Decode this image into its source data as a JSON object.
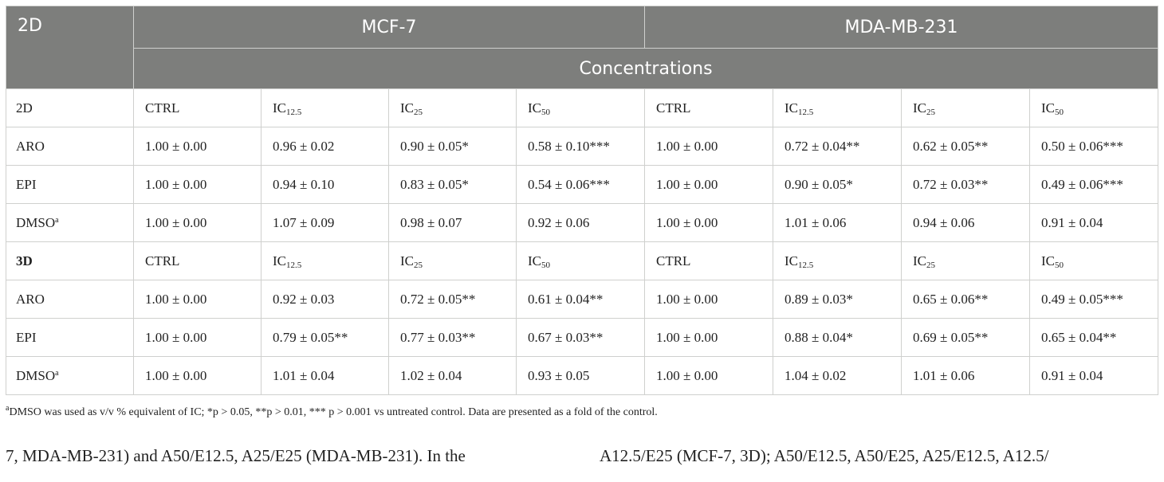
{
  "table": {
    "corner_label": "2D",
    "groups": [
      "MCF-7",
      "MDA-MB-231"
    ],
    "concentrations_label": "Concentrations",
    "sections": [
      {
        "label": "2D",
        "bold": false,
        "cols": [
          [
            "CTRL",
            ""
          ],
          [
            "IC",
            "12.5"
          ],
          [
            "IC",
            "25"
          ],
          [
            "IC",
            "50"
          ],
          [
            "CTRL",
            ""
          ],
          [
            "IC",
            "12.5"
          ],
          [
            "IC",
            "25"
          ],
          [
            "IC",
            "50"
          ]
        ],
        "rows": [
          {
            "label": "ARO",
            "sup": "",
            "values": [
              "1.00 ± 0.00",
              "0.96 ± 0.02",
              "0.90 ± 0.05*",
              "0.58 ± 0.10***",
              "1.00 ± 0.00",
              "0.72 ± 0.04**",
              "0.62 ± 0.05**",
              "0.50 ± 0.06***"
            ]
          },
          {
            "label": "EPI",
            "sup": "",
            "values": [
              "1.00 ± 0.00",
              "0.94 ± 0.10",
              "0.83 ± 0.05*",
              "0.54 ± 0.06***",
              "1.00 ± 0.00",
              "0.90 ± 0.05*",
              "0.72 ± 0.03**",
              "0.49 ± 0.06***"
            ]
          },
          {
            "label": "DMSO",
            "sup": "a",
            "values": [
              "1.00 ± 0.00",
              "1.07 ± 0.09",
              "0.98 ± 0.07",
              "0.92 ± 0.06",
              "1.00 ± 0.00",
              "1.01 ± 0.06",
              "0.94 ± 0.06",
              "0.91 ± 0.04"
            ]
          }
        ]
      },
      {
        "label": "3D",
        "bold": true,
        "cols": [
          [
            "CTRL",
            ""
          ],
          [
            "IC",
            "12.5"
          ],
          [
            "IC",
            "25"
          ],
          [
            "IC",
            "50"
          ],
          [
            "CTRL",
            ""
          ],
          [
            "IC",
            "12.5"
          ],
          [
            "IC",
            "25"
          ],
          [
            "IC",
            "50"
          ]
        ],
        "rows": [
          {
            "label": "ARO",
            "sup": "",
            "values": [
              "1.00 ± 0.00",
              "0.92 ± 0.03",
              "0.72 ± 0.05**",
              "0.61 ± 0.04**",
              "1.00 ± 0.00",
              "0.89 ± 0.03*",
              "0.65 ± 0.06**",
              "0.49 ± 0.05***"
            ]
          },
          {
            "label": "EPI",
            "sup": "",
            "values": [
              "1.00 ± 0.00",
              "0.79 ± 0.05**",
              "0.77 ± 0.03**",
              "0.67 ± 0.03**",
              "1.00 ± 0.00",
              "0.88 ± 0.04*",
              "0.69 ± 0.05**",
              "0.65 ± 0.04**"
            ]
          },
          {
            "label": "DMSO",
            "sup": "a",
            "values": [
              "1.00 ± 0.00",
              "1.01 ± 0.04",
              "1.02 ± 0.04",
              "0.93 ± 0.05",
              "1.00 ± 0.00",
              "1.04 ± 0.02",
              "1.01 ± 0.06",
              "0.91 ± 0.04"
            ]
          }
        ]
      }
    ]
  },
  "footnote": {
    "sup": "a",
    "text": "DMSO was used as v/v % equivalent of IC; *p > 0.05, **p > 0.01, *** p > 0.001 vs untreated control. Data are presented as a fold of the control."
  },
  "body_text": {
    "left": "7, MDA-MB-231) and A50/E12.5, A25/E25 (MDA-MB-231). In the",
    "right": "A12.5/E25 (MCF-7, 3D); A50/E12.5, A50/E25, A25/E12.5, A12.5/"
  }
}
